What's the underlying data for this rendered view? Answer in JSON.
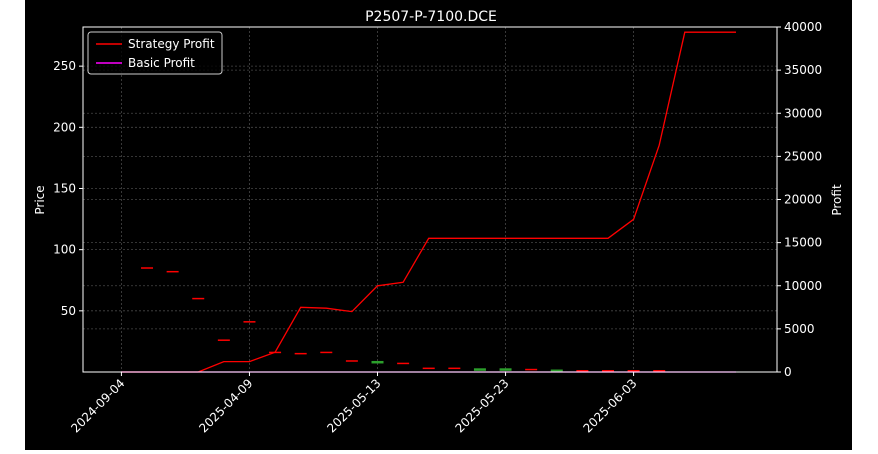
{
  "chart_data": {
    "type": "line",
    "title": "P2507-P-7100.DCE",
    "ylabel_left": "Price",
    "ylabel_right": "Profit",
    "xlabel": "",
    "x_tick_labels": [
      "2024-09-04",
      "2025-04-09",
      "2025-05-13",
      "2025-05-23",
      "2025-06-03"
    ],
    "left_axis": {
      "ylim": [
        0,
        282
      ],
      "ticks": [
        50,
        100,
        150,
        200,
        250
      ]
    },
    "right_axis": {
      "ylim": [
        0,
        40000
      ],
      "ticks": [
        0,
        5000,
        10000,
        15000,
        20000,
        25000,
        30000,
        35000,
        40000
      ]
    },
    "grid": true,
    "legend_position": "top-left",
    "legend": [
      {
        "name": "Strategy Profit",
        "color": "#ff0000"
      },
      {
        "name": "Basic Profit",
        "color": "#ff00ff"
      }
    ],
    "series": [
      {
        "name": "Strategy Profit",
        "axis": "right",
        "color": "#ff0000",
        "x": [
          0,
          1,
          2,
          3,
          4,
          5,
          6,
          7,
          8,
          9,
          10,
          11,
          12,
          13,
          14,
          15,
          16,
          17,
          18,
          19,
          20,
          21,
          22,
          23,
          24
        ],
        "values": [
          0,
          0,
          0,
          0,
          1200,
          1200,
          2300,
          7500,
          7400,
          7000,
          10000,
          10400,
          15500,
          15500,
          15500,
          15500,
          15500,
          15500,
          15500,
          15500,
          17700,
          26300,
          39400,
          39400,
          39400
        ]
      },
      {
        "name": "Basic Profit",
        "axis": "right",
        "color": "#ff00ff",
        "x": [
          0,
          24
        ],
        "values": [
          0,
          0
        ]
      }
    ],
    "price_marks": {
      "axis": "left",
      "up_color": "#2ca02c",
      "down_color": "#ff0000",
      "points": [
        {
          "x": 1,
          "value": 85,
          "dir": "down"
        },
        {
          "x": 2,
          "value": 82,
          "dir": "down"
        },
        {
          "x": 3,
          "value": 60,
          "dir": "down"
        },
        {
          "x": 4,
          "value": 26,
          "dir": "down"
        },
        {
          "x": 5,
          "value": 41,
          "dir": "down"
        },
        {
          "x": 6,
          "value": 16,
          "dir": "down"
        },
        {
          "x": 7,
          "value": 15,
          "dir": "down"
        },
        {
          "x": 8,
          "value": 16,
          "dir": "down"
        },
        {
          "x": 9,
          "value": 9,
          "dir": "down"
        },
        {
          "x": 10,
          "value": 8,
          "dir": "up"
        },
        {
          "x": 11,
          "value": 7,
          "dir": "down"
        },
        {
          "x": 12,
          "value": 3,
          "dir": "down"
        },
        {
          "x": 13,
          "value": 3,
          "dir": "down"
        },
        {
          "x": 14,
          "value": 2,
          "dir": "up"
        },
        {
          "x": 15,
          "value": 2,
          "dir": "up"
        },
        {
          "x": 16,
          "value": 2,
          "dir": "down"
        },
        {
          "x": 17,
          "value": 1,
          "dir": "up"
        },
        {
          "x": 18,
          "value": 1,
          "dir": "down"
        },
        {
          "x": 19,
          "value": 1,
          "dir": "down"
        },
        {
          "x": 20,
          "value": 1,
          "dir": "down"
        },
        {
          "x": 21,
          "value": 1,
          "dir": "down"
        }
      ]
    }
  }
}
